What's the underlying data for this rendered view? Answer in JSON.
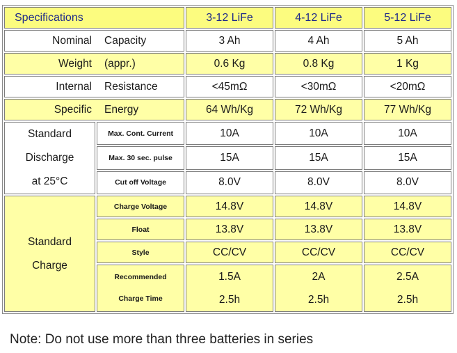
{
  "table": {
    "header": {
      "title": "Specifications",
      "models": [
        "3-12 LiFe",
        "4-12 LiFe",
        "5-12 LiFe"
      ]
    },
    "general_rows": [
      {
        "label_a": "Nominal",
        "label_b": "Capacity",
        "values": [
          "3 Ah",
          "4 Ah",
          "5 Ah"
        ]
      },
      {
        "label_a": "Weight",
        "label_b": "(appr.)",
        "values": [
          "0.6 Kg",
          "0.8 Kg",
          "1 Kg"
        ]
      },
      {
        "label_a": "Internal",
        "label_b": "Resistance",
        "values": [
          "<45mΩ",
          "<30mΩ",
          "<20mΩ"
        ]
      },
      {
        "label_a": "Specific",
        "label_b": "Energy",
        "values": [
          "64 Wh/Kg",
          "72 Wh/Kg",
          "77 Wh/Kg"
        ]
      }
    ],
    "discharge": {
      "group_lines": [
        "Standard",
        "Discharge",
        "at 25°C"
      ],
      "rows": [
        {
          "label": "Max. Cont. Current",
          "values": [
            "10A",
            "10A",
            "10A"
          ]
        },
        {
          "label": "Max. 30 sec. pulse",
          "values": [
            "15A",
            "15A",
            "15A"
          ]
        },
        {
          "label": "Cut off Voltage",
          "values": [
            "8.0V",
            "8.0V",
            "8.0V"
          ]
        }
      ]
    },
    "charge": {
      "group_lines": [
        "Standard",
        "Charge"
      ],
      "rows": [
        {
          "label": "Charge Voltage",
          "values": [
            "14.8V",
            "14.8V",
            "14.8V"
          ]
        },
        {
          "label": "Float",
          "values": [
            "13.8V",
            "13.8V",
            "13.8V"
          ]
        },
        {
          "label": "Style",
          "values": [
            "CC/CV",
            "CC/CV",
            "CC/CV"
          ]
        }
      ],
      "charge_time": {
        "label_lines": [
          "Recommended",
          "Charge Time"
        ],
        "values": [
          [
            "1.5A",
            "2.5h"
          ],
          [
            "2A",
            "2.5h"
          ],
          [
            "2.5A",
            "2.5h"
          ]
        ]
      }
    }
  },
  "note": "Note: Do not use more than three batteries in series",
  "colors": {
    "header_fill": "#fcfc7f",
    "header_text": "#1f2a8a",
    "row_yellow": "#ffffa6",
    "row_white": "#ffffff",
    "border": "#7d7d7d"
  }
}
